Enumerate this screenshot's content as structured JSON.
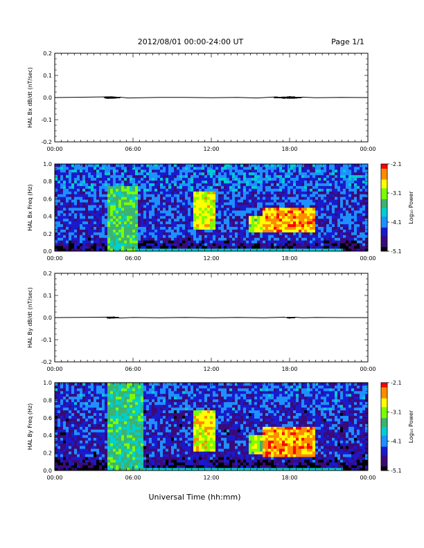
{
  "header": {
    "title": "2012/08/01   00:00-24:00 UT",
    "page": "Page 1/1"
  },
  "xlabel": "Universal Time (hh:mm)",
  "time_ticks": [
    "00:00",
    "06:00",
    "12:00",
    "18:00",
    "00:00"
  ],
  "colorbar": {
    "label": "Log₁₀ Power",
    "ticks": [
      "-2.1",
      "-3.1",
      "-4.1",
      "-5.1"
    ],
    "range": [
      -5.1,
      -2.1
    ],
    "colormap": [
      "#000000",
      "#3b0a7a",
      "#1a1acc",
      "#1e90ff",
      "#00ced1",
      "#3cb371",
      "#7cfc00",
      "#ffff00",
      "#ff8c00",
      "#ff0000"
    ]
  },
  "chart_data": [
    {
      "type": "line",
      "ylabel": "HAL Bx dB/dt (nT/sec)",
      "ylim": [
        -0.2,
        0.2
      ],
      "yticks": [
        "0.2",
        "0.1",
        "0.0",
        "-0.1",
        "-0.2"
      ],
      "xlim_hours": [
        0,
        24
      ],
      "series": [
        {
          "x_hours": [
            0,
            4.0,
            4.1,
            4.3,
            4.6,
            5.0,
            5.6,
            8,
            10,
            12,
            14,
            15.5,
            17,
            17.6,
            18.0,
            18.5,
            19,
            20,
            22,
            24
          ],
          "y": [
            0.0,
            0.003,
            -0.005,
            0.004,
            -0.003,
            0.002,
            -0.002,
            0.001,
            0.001,
            -0.001,
            0.001,
            -0.002,
            0.003,
            -0.004,
            0.005,
            -0.003,
            0.002,
            -0.001,
            0.001,
            0.0
          ]
        }
      ]
    },
    {
      "type": "heatmap",
      "ylabel": "HAL Bx Freq (Hz)",
      "ylim": [
        0.0,
        1.0
      ],
      "yticks": [
        "1.0",
        "0.8",
        "0.6",
        "0.4",
        "0.2",
        "0.0"
      ],
      "xlim_hours": [
        0,
        24
      ],
      "value_units": "log10 power",
      "background_level": -4.4,
      "features": [
        {
          "t_start": 4.1,
          "t_end": 6.4,
          "f_low": 0.0,
          "f_high": 0.75,
          "level": -3.4
        },
        {
          "t_start": 10.6,
          "t_end": 12.4,
          "f_low": 0.25,
          "f_high": 0.68,
          "level": -2.9
        },
        {
          "t_start": 14.8,
          "t_end": 16.2,
          "f_low": 0.22,
          "f_high": 0.42,
          "level": -3.0
        },
        {
          "t_start": 16.0,
          "t_end": 19.9,
          "f_low": 0.22,
          "f_high": 0.5,
          "level": -2.5
        }
      ]
    },
    {
      "type": "line",
      "ylabel": "HAL By dB/dt (nT/sec)",
      "ylim": [
        -0.2,
        0.2
      ],
      "yticks": [
        "0.2",
        "0.1",
        "0.0",
        "-0.1",
        "-0.2"
      ],
      "xlim_hours": [
        0,
        24
      ],
      "series": [
        {
          "x_hours": [
            0,
            4.0,
            4.2,
            4.5,
            5.0,
            6.0,
            8,
            10,
            12,
            14,
            16,
            17.6,
            18.0,
            18.4,
            19,
            20,
            22,
            24
          ],
          "y": [
            0.0,
            0.002,
            -0.004,
            0.003,
            -0.002,
            0.001,
            -0.001,
            0.001,
            -0.001,
            0.001,
            -0.001,
            0.002,
            -0.003,
            0.002,
            -0.001,
            0.001,
            0.0,
            0.0
          ]
        }
      ]
    },
    {
      "type": "heatmap",
      "ylabel": "HAL By Freq (Hz)",
      "ylim": [
        0.0,
        1.0
      ],
      "yticks": [
        "1.0",
        "0.8",
        "0.6",
        "0.4",
        "0.2",
        "0.0"
      ],
      "xlim_hours": [
        0,
        24
      ],
      "value_units": "log10 power",
      "background_level": -4.5,
      "features": [
        {
          "t_start": 4.0,
          "t_end": 6.8,
          "f_low": 0.0,
          "f_high": 1.0,
          "level": -3.5
        },
        {
          "t_start": 10.6,
          "t_end": 12.4,
          "f_low": 0.22,
          "f_high": 0.68,
          "level": -2.8
        },
        {
          "t_start": 14.8,
          "t_end": 16.0,
          "f_low": 0.18,
          "f_high": 0.42,
          "level": -3.0
        },
        {
          "t_start": 16.0,
          "t_end": 20.0,
          "f_low": 0.15,
          "f_high": 0.5,
          "level": -2.5
        }
      ]
    }
  ]
}
